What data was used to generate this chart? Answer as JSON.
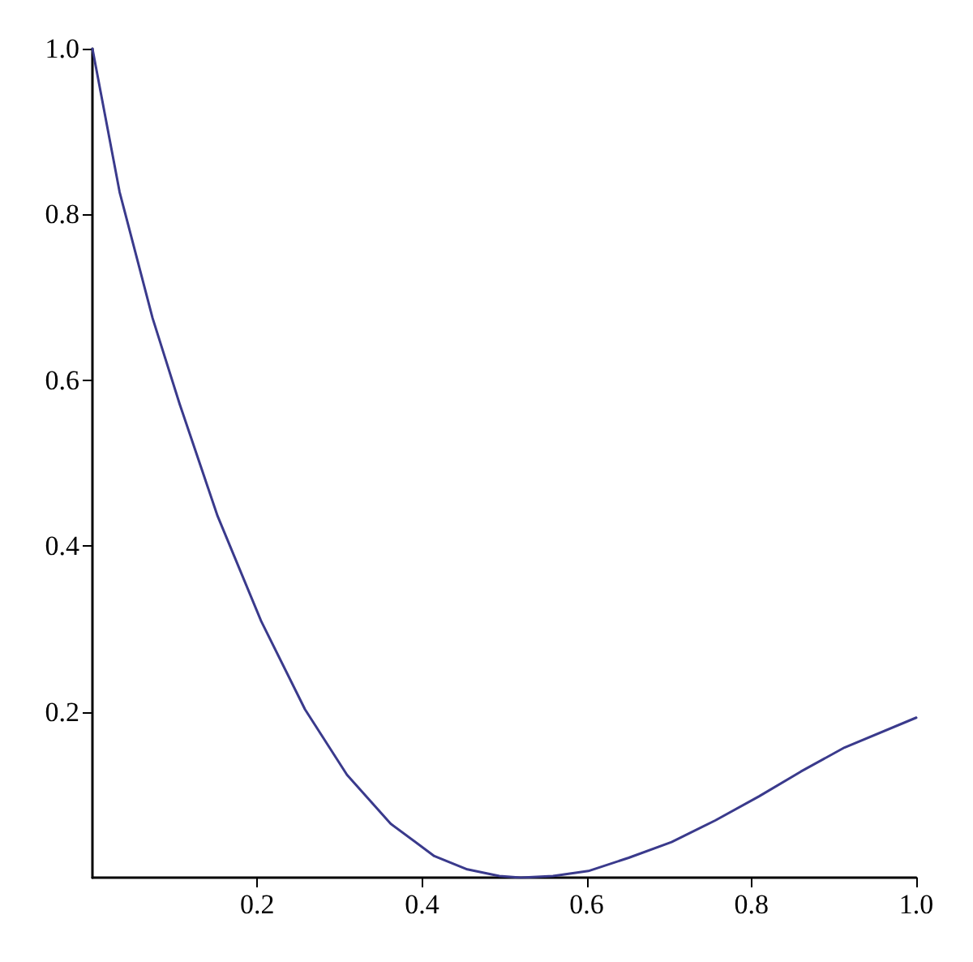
{
  "chart_data": {
    "type": "line",
    "x": [
      0,
      0.033,
      0.073,
      0.106,
      0.152,
      0.205,
      0.258,
      0.309,
      0.362,
      0.415,
      0.455,
      0.494,
      0.52,
      0.559,
      0.602,
      0.651,
      0.703,
      0.756,
      0.809,
      0.86,
      0.913,
      1.0
    ],
    "series": [
      {
        "color": "#3a3a8c",
        "values": [
          1.0,
          0.827,
          0.675,
          0.571,
          0.436,
          0.309,
          0.203,
          0.124,
          0.065,
          0.026,
          0.01,
          0.002,
          0,
          0.002,
          0.008,
          0.024,
          0.043,
          0.069,
          0.098,
          0.128,
          0.157,
          0.193
        ]
      }
    ],
    "xlim": [
      0,
      1
    ],
    "ylim": [
      0,
      1
    ],
    "xticks": [
      0.2,
      0.4,
      0.6,
      0.8,
      {
        "value": 1,
        "label": "1.0"
      }
    ],
    "yticks": [
      0.2,
      0.4,
      0.6,
      0.8,
      {
        "value": 1,
        "label": "1.0"
      }
    ],
    "marker": "none",
    "line_style": "solid"
  }
}
